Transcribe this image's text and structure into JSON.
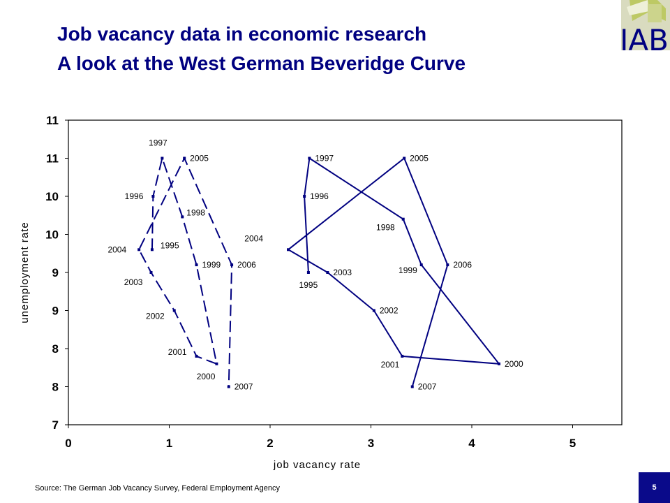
{
  "slide": {
    "title_line1": "Job vacancy data in economic research",
    "title_line2": "A look at the West German Beveridge Curve",
    "logo_text": "IAB",
    "source": "Source: The German Job Vacancy Survey, Federal Employment Agency",
    "page_number": "5"
  },
  "chart_data": {
    "type": "line",
    "xlabel": "job vacancy rate",
    "ylabel": "unemployment rate",
    "xlim": [
      0,
      5.5
    ],
    "ylim": [
      7,
      11
    ],
    "x_ticks": [
      0,
      1,
      2,
      3,
      4,
      5
    ],
    "y_tick_values": [
      7,
      7.5,
      8,
      8.5,
      9,
      9.5,
      10,
      10.5,
      11
    ],
    "y_tick_labels": [
      "7",
      "8",
      "8",
      "9",
      "9",
      "10",
      "10",
      "11",
      "11"
    ],
    "grid": false,
    "border_color": "#000000",
    "series_color": "#000080",
    "series": [
      {
        "style": "dashed",
        "points": [
          {
            "label": "1995",
            "x": 0.83,
            "y": 9.3
          },
          {
            "label": "1996",
            "x": 0.84,
            "y": 10.0
          },
          {
            "label": "1997",
            "x": 0.93,
            "y": 10.5
          },
          {
            "label": "1998",
            "x": 1.13,
            "y": 9.73
          },
          {
            "label": "1999",
            "x": 1.27,
            "y": 9.1
          },
          {
            "label": "2000",
            "x": 1.47,
            "y": 7.8
          },
          {
            "label": "2001",
            "x": 1.27,
            "y": 7.9
          },
          {
            "label": "2002",
            "x": 1.05,
            "y": 8.5
          },
          {
            "label": "2003",
            "x": 0.82,
            "y": 9.0
          },
          {
            "label": "2004",
            "x": 0.7,
            "y": 9.3
          },
          {
            "label": "2005",
            "x": 1.15,
            "y": 10.5
          },
          {
            "label": "2006",
            "x": 1.62,
            "y": 9.1
          },
          {
            "label": "2007",
            "x": 1.59,
            "y": 7.5
          }
        ]
      },
      {
        "style": "solid",
        "points": [
          {
            "label": "1995",
            "x": 2.38,
            "y": 9.0
          },
          {
            "label": "1996",
            "x": 2.34,
            "y": 10.0
          },
          {
            "label": "1997",
            "x": 2.39,
            "y": 10.5
          },
          {
            "label": "1998",
            "x": 3.32,
            "y": 9.7
          },
          {
            "label": "1999",
            "x": 3.5,
            "y": 9.1
          },
          {
            "label": "2000",
            "x": 4.27,
            "y": 7.8
          },
          {
            "label": "2001",
            "x": 3.31,
            "y": 7.9
          },
          {
            "label": "2002",
            "x": 3.03,
            "y": 8.5
          },
          {
            "label": "2003",
            "x": 2.57,
            "y": 9.0
          },
          {
            "label": "2004",
            "x": 2.18,
            "y": 9.3
          },
          {
            "label": "2005",
            "x": 3.33,
            "y": 10.5
          },
          {
            "label": "2006",
            "x": 3.76,
            "y": 9.1
          },
          {
            "label": "2007",
            "x": 3.41,
            "y": 7.5
          }
        ]
      }
    ]
  }
}
